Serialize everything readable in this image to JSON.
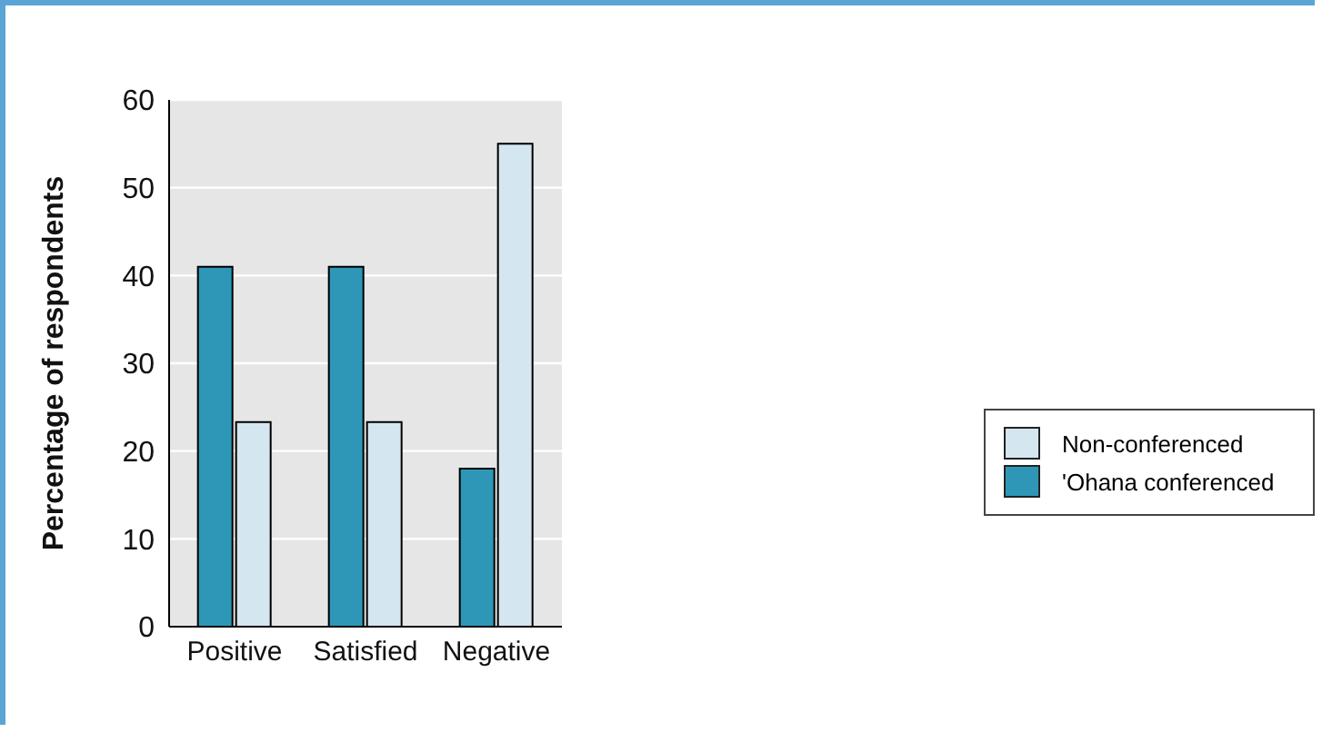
{
  "chart_data": {
    "type": "bar",
    "ylabel": "Percentage of respondents",
    "categories": [
      "Positive",
      "Satisfied",
      "Negative"
    ],
    "series": [
      {
        "name": "'Ohana conferenced",
        "color": "#2e97b8",
        "values": [
          41,
          41,
          18
        ]
      },
      {
        "name": "Non-conferenced",
        "color": "#d4e6ef",
        "values": [
          23.3,
          23.3,
          55
        ]
      }
    ],
    "ylim": [
      0,
      60
    ],
    "yticks": [
      0,
      10,
      20,
      30,
      40,
      50,
      60
    ],
    "grid": "y",
    "legend": "right"
  }
}
